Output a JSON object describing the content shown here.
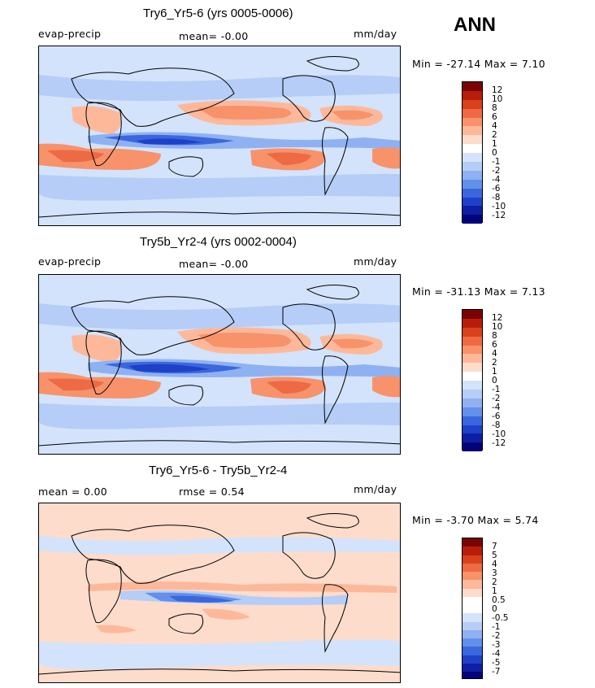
{
  "season": "ANN",
  "panels": [
    {
      "title": "Try6_Yr5-6 (yrs 0005-0006)",
      "left_label": "evap-precip",
      "center_label": "mean=   -0.00",
      "right_label": "mm/day",
      "minmax": "Min = -27.14 Max =    7.10",
      "colorbar_ticks": [
        "12",
        "10",
        "8",
        "6",
        "4",
        "2",
        "1",
        "0",
        "-1",
        "-2",
        "-4",
        "-6",
        "-8",
        "-10",
        "-12"
      ]
    },
    {
      "title": "Try5b_Yr2-4 (yrs 0002-0004)",
      "left_label": "evap-precip",
      "center_label": "mean=   -0.00",
      "right_label": "mm/day",
      "minmax": "Min = -31.13 Max =    7.13",
      "colorbar_ticks": [
        "12",
        "10",
        "8",
        "6",
        "4",
        "2",
        "1",
        "0",
        "-1",
        "-2",
        "-4",
        "-6",
        "-8",
        "-10",
        "-12"
      ]
    },
    {
      "title": "Try6_Yr5-6 - Try5b_Yr2-4",
      "left_label": "mean =    0.00",
      "center_label": "rmse =    0.54",
      "right_label": "mm/day",
      "minmax": "Min =  -3.70 Max =    5.74",
      "colorbar_ticks": [
        "7",
        "5",
        "4",
        "3",
        "2",
        "1",
        "0.5",
        "0",
        "-0.5",
        "-1",
        "-2",
        "-3",
        "-4",
        "-5",
        "-7"
      ]
    }
  ],
  "colors": {
    "abs_scale": [
      "#7a0403",
      "#b81d0c",
      "#d9401c",
      "#ee6a44",
      "#f7926b",
      "#fdb89a",
      "#fddccb",
      "#ffffff",
      "#d3e3fb",
      "#b5cdf7",
      "#8fb1f1",
      "#6390eb",
      "#3b67de",
      "#1f40c8",
      "#0e1fa3",
      "#04047a"
    ],
    "diff_scale": [
      "#7a0403",
      "#b81d0c",
      "#d9401c",
      "#ee6a44",
      "#f7926b",
      "#fdb89a",
      "#fddccb",
      "#ffffff",
      "#ffffff",
      "#d3e3fb",
      "#b5cdf7",
      "#8fb1f1",
      "#6390eb",
      "#3b67de",
      "#1f40c8",
      "#0e1fa3",
      "#04047a"
    ]
  }
}
